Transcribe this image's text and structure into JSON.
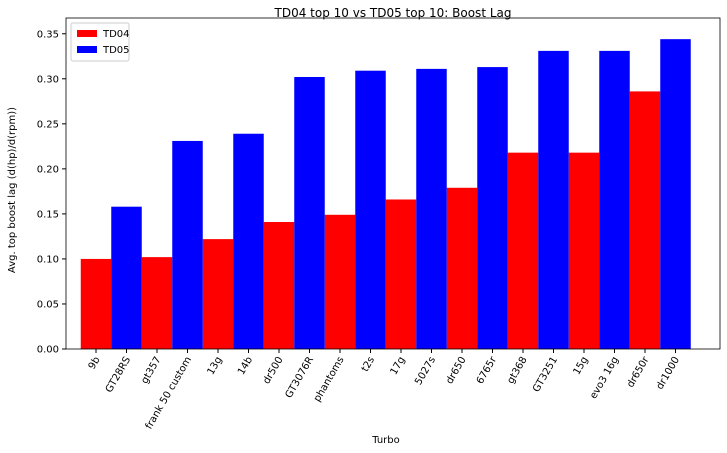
{
  "chart_data": {
    "type": "bar",
    "title": "TD04 top 10 vs TD05 top 10: Boost Lag",
    "x_label": "Turbo",
    "y_label": "Avg. top boost lag (d(hp)/d(rpm))",
    "categories": [
      "9b",
      "GT28RS",
      "gt357",
      "frank 50 custom",
      "13g",
      "14b",
      "dr500",
      "GT3076R",
      "phantoms",
      "t2s",
      "17g",
      "5027s",
      "dr650",
      "6765r",
      "gt368",
      "GT3251",
      "15g",
      "evo3 16g",
      "dr650r",
      "dr1000"
    ],
    "series": [
      {
        "name": "TD04",
        "color": "#ff0000",
        "values": [
          0.1,
          null,
          0.102,
          null,
          0.122,
          null,
          0.141,
          null,
          0.149,
          null,
          0.166,
          null,
          0.179,
          null,
          0.218,
          null,
          0.218,
          null,
          0.286,
          null
        ]
      },
      {
        "name": "TD05",
        "color": "#0000ff",
        "values": [
          null,
          0.158,
          null,
          0.231,
          null,
          0.239,
          null,
          0.302,
          null,
          0.309,
          null,
          0.311,
          null,
          0.313,
          null,
          0.331,
          null,
          0.331,
          null,
          0.344
        ]
      }
    ],
    "ylim": [
      0,
      0.3675
    ],
    "yticks": [
      {
        "value": 0,
        "label": "0.00"
      },
      {
        "value": 0.05,
        "label": "0.05"
      },
      {
        "value": 0.1,
        "label": "0.10"
      },
      {
        "value": 0.15,
        "label": "0.15"
      },
      {
        "value": 0.2,
        "label": "0.20"
      },
      {
        "value": 0.25,
        "label": "0.25"
      },
      {
        "value": 0.3,
        "label": "0.30"
      },
      {
        "value": 0.35,
        "label": "0.35"
      }
    ],
    "legend": "upper left"
  }
}
